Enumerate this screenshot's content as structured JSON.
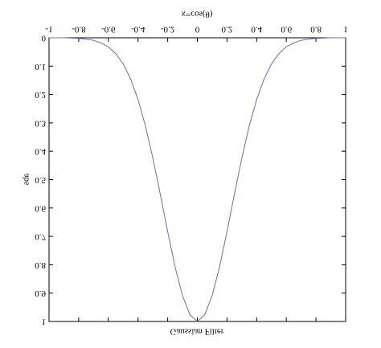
{
  "chart_data": {
    "type": "line",
    "title": "Gaussian Filter",
    "x_label": "x=cos(θ)",
    "y_label": "abs",
    "x": [
      -1,
      -0.95,
      -0.9,
      -0.85,
      -0.8,
      -0.75,
      -0.7,
      -0.65,
      -0.6,
      -0.55,
      -0.5,
      -0.45,
      -0.4,
      -0.35,
      -0.3,
      -0.25,
      -0.2,
      -0.15,
      -0.1,
      -0.05,
      0,
      0.05,
      0.1,
      0.15,
      0.2,
      0.25,
      0.3,
      0.35,
      0.4,
      0.45,
      0.5,
      0.55,
      0.6,
      0.65,
      0.7,
      0.75,
      0.8,
      0.85,
      0.9,
      0.95,
      1
    ],
    "series": [
      {
        "color": "#6b6bb5",
        "values": [
          0,
          0,
          0,
          0.001,
          0.002,
          0.005,
          0.009,
          0.018,
          0.032,
          0.056,
          0.092,
          0.145,
          0.218,
          0.311,
          0.424,
          0.551,
          0.683,
          0.807,
          0.909,
          0.976,
          1,
          0.976,
          0.909,
          0.807,
          0.683,
          0.551,
          0.424,
          0.311,
          0.218,
          0.145,
          0.092,
          0.056,
          0.032,
          0.018,
          0.009,
          0.005,
          0.002,
          0.001,
          0,
          0,
          0
        ]
      }
    ],
    "xlim": [
      -1,
      1
    ],
    "xticks": [
      -1,
      -0.8,
      -0.6,
      -0.4,
      -0.2,
      0,
      0.2,
      0.4,
      0.6,
      0.8,
      1
    ],
    "ylim": [
      0,
      1
    ],
    "yticks": [
      0,
      0.1,
      0.2,
      0.3,
      0.4,
      0.5,
      0.6,
      0.7,
      0.8,
      0.9,
      1
    ],
    "grid": false,
    "flipped_vertically": true
  }
}
